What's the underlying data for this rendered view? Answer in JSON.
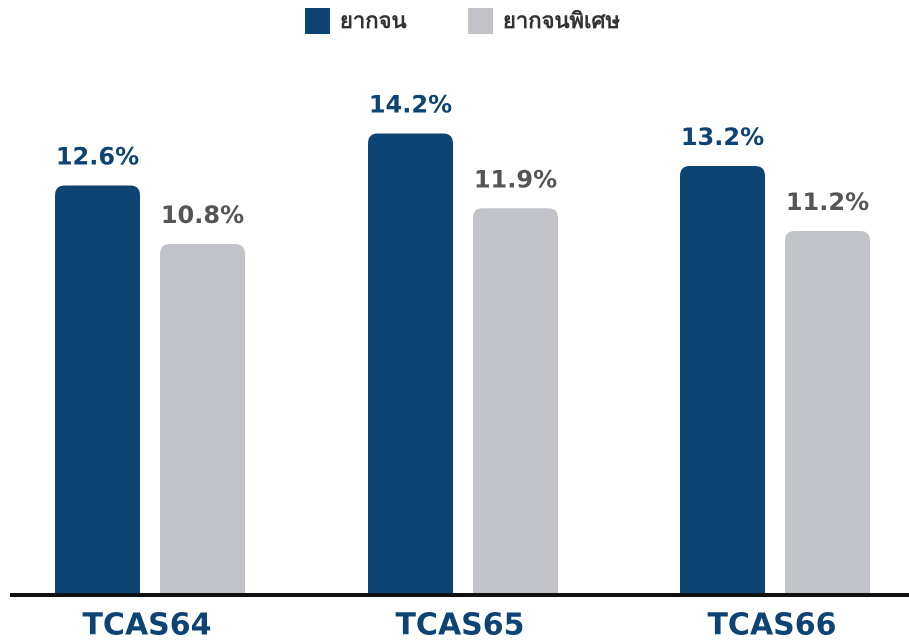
{
  "chart_data": {
    "type": "bar",
    "categories": [
      "TCAS64",
      "TCAS65",
      "TCAS66"
    ],
    "series": [
      {
        "name": "ยากจน",
        "color": "#0e4473",
        "label_color": "#0e4473",
        "values": [
          12.6,
          14.2,
          13.2
        ],
        "value_labels": [
          "12.6%",
          "14.2%",
          "13.2%"
        ]
      },
      {
        "name": "ยากจนพิเศษ",
        "color": "#c1c3c8",
        "label_color": "#555555",
        "values": [
          10.8,
          11.9,
          11.2
        ],
        "value_labels": [
          "10.8%",
          "11.9%",
          "11.2%"
        ]
      }
    ],
    "legend": "top"
  }
}
